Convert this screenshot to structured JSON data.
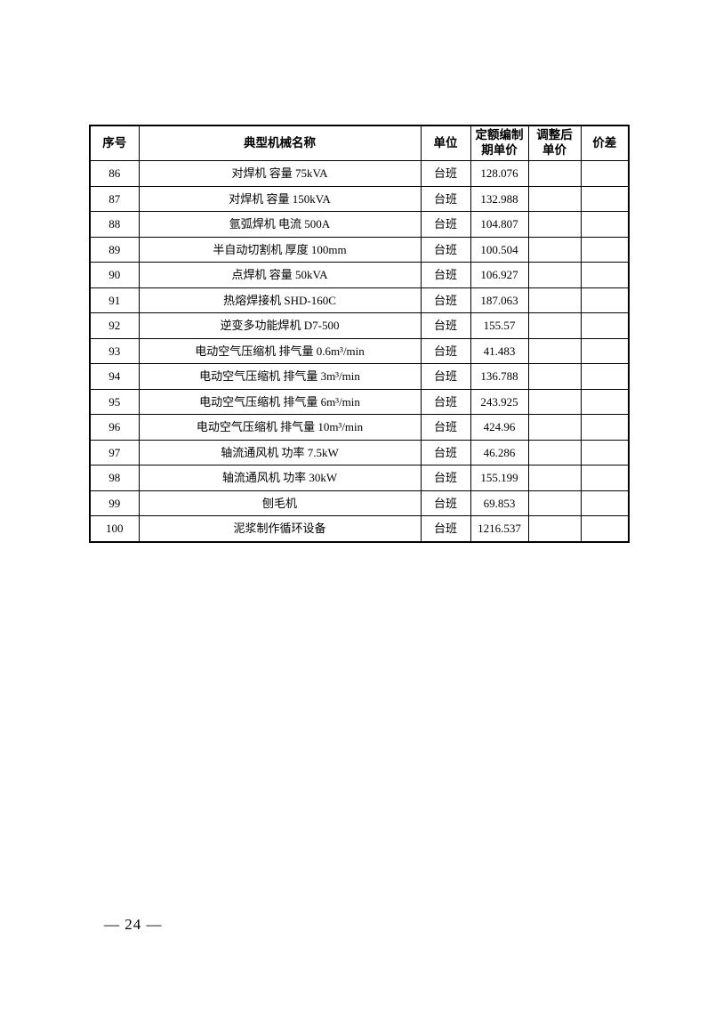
{
  "page": {
    "footer_page_number": "— 24 —"
  },
  "table": {
    "columns": [
      {
        "key": "no",
        "label": "序号"
      },
      {
        "key": "name",
        "label": "典型机械名称"
      },
      {
        "key": "unit",
        "label": "单位"
      },
      {
        "key": "base_price",
        "label": "定额编制\n期单价"
      },
      {
        "key": "adjusted_price",
        "label": "调整后\n单价"
      },
      {
        "key": "price_diff",
        "label": "价差"
      }
    ],
    "rows": [
      {
        "no": "86",
        "name": "对焊机 容量 75kVA",
        "unit": "台班",
        "base_price": "128.076",
        "adjusted_price": "",
        "price_diff": ""
      },
      {
        "no": "87",
        "name": "对焊机 容量 150kVA",
        "unit": "台班",
        "base_price": "132.988",
        "adjusted_price": "",
        "price_diff": ""
      },
      {
        "no": "88",
        "name": "氩弧焊机 电流 500A",
        "unit": "台班",
        "base_price": "104.807",
        "adjusted_price": "",
        "price_diff": ""
      },
      {
        "no": "89",
        "name": "半自动切割机 厚度 100mm",
        "unit": "台班",
        "base_price": "100.504",
        "adjusted_price": "",
        "price_diff": ""
      },
      {
        "no": "90",
        "name": "点焊机 容量 50kVA",
        "unit": "台班",
        "base_price": "106.927",
        "adjusted_price": "",
        "price_diff": ""
      },
      {
        "no": "91",
        "name": "热熔焊接机 SHD-160C",
        "unit": "台班",
        "base_price": "187.063",
        "adjusted_price": "",
        "price_diff": ""
      },
      {
        "no": "92",
        "name": "逆变多功能焊机 D7-500",
        "unit": "台班",
        "base_price": "155.57",
        "adjusted_price": "",
        "price_diff": ""
      },
      {
        "no": "93",
        "name": "电动空气压缩机 排气量 0.6m³/min",
        "unit": "台班",
        "base_price": "41.483",
        "adjusted_price": "",
        "price_diff": ""
      },
      {
        "no": "94",
        "name": "电动空气压缩机 排气量 3m³/min",
        "unit": "台班",
        "base_price": "136.788",
        "adjusted_price": "",
        "price_diff": ""
      },
      {
        "no": "95",
        "name": "电动空气压缩机 排气量 6m³/min",
        "unit": "台班",
        "base_price": "243.925",
        "adjusted_price": "",
        "price_diff": ""
      },
      {
        "no": "96",
        "name": "电动空气压缩机 排气量 10m³/min",
        "unit": "台班",
        "base_price": "424.96",
        "adjusted_price": "",
        "price_diff": ""
      },
      {
        "no": "97",
        "name": "轴流通风机 功率 7.5kW",
        "unit": "台班",
        "base_price": "46.286",
        "adjusted_price": "",
        "price_diff": ""
      },
      {
        "no": "98",
        "name": "轴流通风机 功率 30kW",
        "unit": "台班",
        "base_price": "155.199",
        "adjusted_price": "",
        "price_diff": ""
      },
      {
        "no": "99",
        "name": "刨毛机",
        "unit": "台班",
        "base_price": "69.853",
        "adjusted_price": "",
        "price_diff": ""
      },
      {
        "no": "100",
        "name": "泥浆制作循环设备",
        "unit": "台班",
        "base_price": "1216.537",
        "adjusted_price": "",
        "price_diff": ""
      }
    ],
    "column_widths": {
      "no": 55,
      "name": 317,
      "unit": 56,
      "base_price": 65,
      "adjusted_price": 59,
      "price_diff": 54
    }
  }
}
